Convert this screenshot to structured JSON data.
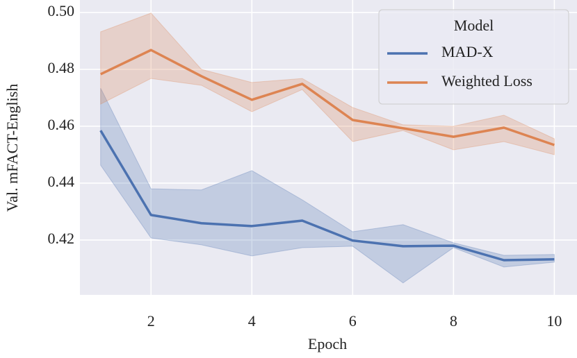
{
  "chart_data": {
    "type": "line",
    "x_label": "Epoch",
    "y_label": "Val. mFACT-English",
    "x": [
      1,
      2,
      3,
      4,
      5,
      6,
      7,
      8,
      9,
      10
    ],
    "series": [
      {
        "name": "MAD-X",
        "color": "#4c72b0",
        "values": [
          0.4585,
          0.4288,
          0.4259,
          0.4249,
          0.4268,
          0.4198,
          0.4178,
          0.418,
          0.4129,
          0.4132
        ],
        "lower": [
          0.4463,
          0.4207,
          0.4183,
          0.4144,
          0.4173,
          0.4178,
          0.4049,
          0.4173,
          0.4105,
          0.4122
        ],
        "upper": [
          0.4734,
          0.438,
          0.4376,
          0.4444,
          0.4341,
          0.4229,
          0.4254,
          0.419,
          0.4146,
          0.4149
        ]
      },
      {
        "name": "Weighted Loss",
        "color": "#dd8452",
        "values": [
          0.4783,
          0.4868,
          0.4776,
          0.4693,
          0.4749,
          0.4622,
          0.4593,
          0.4563,
          0.4595,
          0.4534
        ],
        "lower": [
          0.4678,
          0.4768,
          0.4744,
          0.4651,
          0.4729,
          0.4546,
          0.4585,
          0.4517,
          0.4546,
          0.45
        ],
        "upper": [
          0.4932,
          0.4998,
          0.48,
          0.4754,
          0.4768,
          0.4666,
          0.4605,
          0.46,
          0.4639,
          0.4556
        ]
      }
    ],
    "xlim": [
      0.59,
      10.45
    ],
    "ylim": [
      0.4007,
      0.5044
    ],
    "xticks": [
      2,
      4,
      6,
      8,
      10
    ],
    "yticks": [
      0.42,
      0.44,
      0.46,
      0.48,
      {
        "value": 0.5,
        "label": "0.50"
      }
    ],
    "grid": true,
    "legend_title": "Model",
    "legend_position": "upper right"
  }
}
